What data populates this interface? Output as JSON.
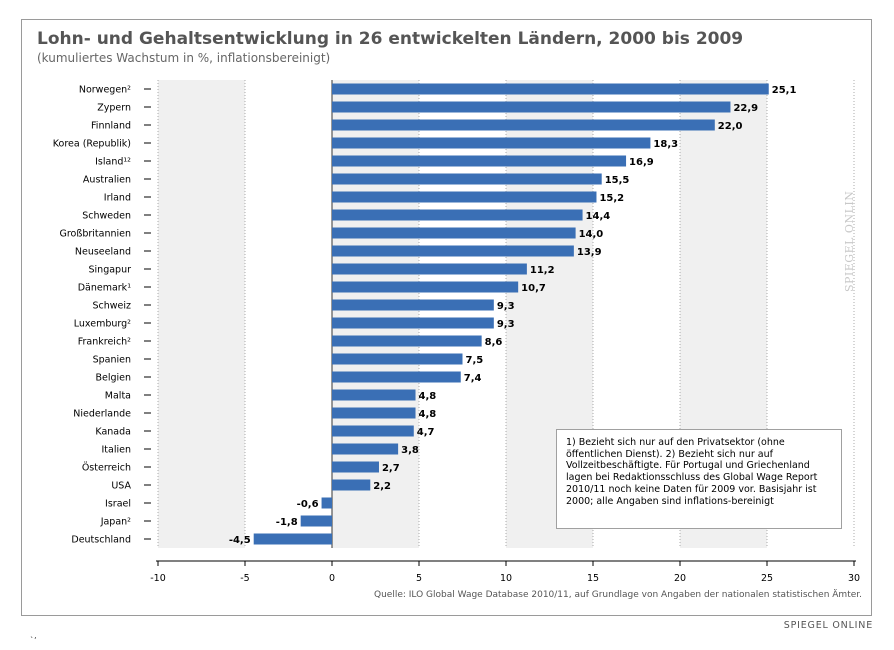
{
  "chart_data": {
    "type": "bar",
    "orientation": "horizontal",
    "title": "Lohn- und Gehaltsentwicklung in 26 entwickelten Ländern, 2000 bis 2009",
    "subtitle": "(kumuliertes Wachstum in %, inflationsbereinigt)",
    "categories": [
      "Norwegen²",
      "Zypern",
      "Finnland",
      "Korea (Republik)",
      "Island¹²",
      "Australien",
      "Irland",
      "Schweden",
      "Großbritannien",
      "Neuseeland",
      "Singapur",
      "Dänemark¹",
      "Schweiz",
      "Luxemburg²",
      "Frankreich²",
      "Spanien",
      "Belgien",
      "Malta",
      "Niederlande",
      "Kanada",
      "Italien",
      "Österreich",
      "USA",
      "Israel",
      "Japan²",
      "Deutschland"
    ],
    "values": [
      25.1,
      22.9,
      22.0,
      18.3,
      16.9,
      15.5,
      15.2,
      14.4,
      14.0,
      13.9,
      11.2,
      10.7,
      9.3,
      9.3,
      8.6,
      7.5,
      7.4,
      4.8,
      4.8,
      4.7,
      3.8,
      2.7,
      2.2,
      -0.6,
      -1.8,
      -4.5
    ],
    "value_labels": [
      "25,1",
      "22,9",
      "22,0",
      "18,3",
      "16,9",
      "15,5",
      "15,2",
      "14,4",
      "14,0",
      "13,9",
      "11,2",
      "10,7",
      "9,3",
      "9,3",
      "8,6",
      "7,5",
      "7,4",
      "4,8",
      "4,8",
      "4,7",
      "3,8",
      "2,7",
      "2,2",
      "-0,6",
      "-1,8",
      "-4,5"
    ],
    "xlim": [
      -10,
      30
    ],
    "xticks": [
      -10,
      -5,
      0,
      5,
      10,
      15,
      20,
      25,
      30
    ],
    "xtick_labels": [
      "-10",
      "-5",
      "0",
      "5",
      "10",
      "15",
      "20",
      "25",
      "30"
    ],
    "bar_color": "#3a6fb5",
    "band_color": "#f0f0f0",
    "grid": true,
    "legend": "none"
  },
  "footnote": "1) Bezieht sich nur auf den Privatsektor (ohne öffentlichen Dienst). 2) Bezieht sich nur auf Vollzeitbeschäftigte. Für Portugal und Griechenland lagen bei Redaktionsschluss des Global Wage Report 2010/11 noch keine Daten für 2009 vor. Basisjahr ist 2000; alle Angaben sind inflations-bereinigt",
  "source": "Quelle: ILO Global Wage Database 2010/11, auf Grundlage von Angaben der nationalen statistischen Ämter.",
  "watermark": "SPIEGEL ONLINE",
  "brand": "SPIEGEL ONLINE",
  "stray_mark": "`ʼ"
}
